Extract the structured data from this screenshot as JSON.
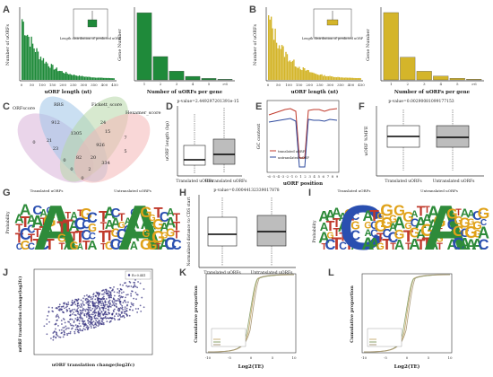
{
  "panels": {
    "A": {
      "letter": "A",
      "hist_ylabel": "Number of uORFs",
      "hist_xlabel": "uORF length (nt)",
      "hist_ticks": [
        "0",
        "50",
        "100",
        "150",
        "200",
        "250",
        "300",
        "350",
        "400",
        "450"
      ],
      "inset_label": "Length distribution of predicted uORF",
      "bar_ylabel": "Gene Number",
      "bar_xlabel": "Number of uORFs per gene",
      "bar_ticks": [
        "1",
        "2",
        "3",
        "4",
        "5",
        ">6"
      ],
      "bar_values": [
        1150,
        400,
        150,
        60,
        25,
        10
      ],
      "bar_yticks": [
        "0",
        "200",
        "400",
        "600",
        "800",
        "1000"
      ],
      "color": "#1f8a3a"
    },
    "B": {
      "letter": "B",
      "hist_ylabel": "Number of uORFs",
      "hist_xlabel": "uORF length (nt)",
      "hist_ticks": [
        "0",
        "50",
        "100",
        "150",
        "200",
        "250",
        "300",
        "350",
        "400",
        "450"
      ],
      "inset_label": "Length distribution of predicted uORF",
      "bar_ylabel": "Gene Number",
      "bar_xlabel": "Number of uORFs per gene",
      "bar_ticks": [
        "1",
        "2",
        "3",
        "4",
        "5",
        ">6"
      ],
      "bar_values": [
        1250,
        420,
        160,
        70,
        30,
        12
      ],
      "bar_yticks": [
        "0",
        "200",
        "400",
        "600",
        "800",
        "1000",
        "1200"
      ],
      "color": "#d4b52a"
    },
    "C": {
      "letter": "C",
      "sets": [
        "ORFscore",
        "RRS",
        "Fickett_score",
        "Hexamer_score"
      ],
      "numbers": [
        "912",
        "24",
        "15",
        "1305",
        "0",
        "7",
        "21",
        "23",
        "926",
        "5",
        "0",
        "82",
        "20",
        "334",
        "0",
        "2",
        "0"
      ]
    },
    "D": {
      "letter": "D",
      "pvalue": "p-value=2.449297201391e-15",
      "ylabel": "uORF length (bp)",
      "xlabels": [
        "Translated uORFs",
        "Untranslated uORFs"
      ]
    },
    "E": {
      "letter": "E",
      "ylabel": "GC content",
      "xlabel": "uORF position",
      "legend": [
        "translated uORF",
        "untranslated uORF"
      ],
      "xticks": [
        "-6",
        "-5",
        "-4",
        "-3",
        "-2",
        "-1",
        "0",
        "1",
        "2",
        "3",
        "4",
        "5",
        "6",
        "7",
        "8",
        "9"
      ]
    },
    "F": {
      "letter": "F",
      "pvalue": "p-value=0.00290081099177153",
      "ylabel": "uORF %MFE",
      "xlabels": [
        "Translated uORFs",
        "Untranslated uORFs"
      ]
    },
    "G": {
      "letter": "G",
      "ylabel": "Probability",
      "titles": [
        "Translated uORFs",
        "Untranslated uORFs"
      ]
    },
    "H": {
      "letter": "H",
      "pvalue": "p-value=0.00044132339017878",
      "ylabel": "Normalized distance to CDS start",
      "xlabels": [
        "Translated uORFs",
        "Untranslated uORFs"
      ]
    },
    "I": {
      "letter": "I",
      "ylabel": "Probability",
      "titles": [
        "Translated uORFs",
        "Untranslated uORFs"
      ]
    },
    "J": {
      "letter": "J",
      "ylabel": "mORF translation change(log2fc)",
      "xlabel": "uORF translation change(log2fc)",
      "legend": "R=0.441"
    },
    "K": {
      "letter": "K",
      "ylabel": "Cumulative proportion",
      "xlabel": "Log2(TE)",
      "xticks": [
        "-10",
        "-5",
        "0",
        "5",
        "10"
      ]
    },
    "L": {
      "letter": "L",
      "ylabel": "Cumulative proportion",
      "xlabel": "Log2(TE)",
      "xticks": [
        "-10",
        "-5",
        "0",
        "5",
        "10"
      ]
    }
  }
}
